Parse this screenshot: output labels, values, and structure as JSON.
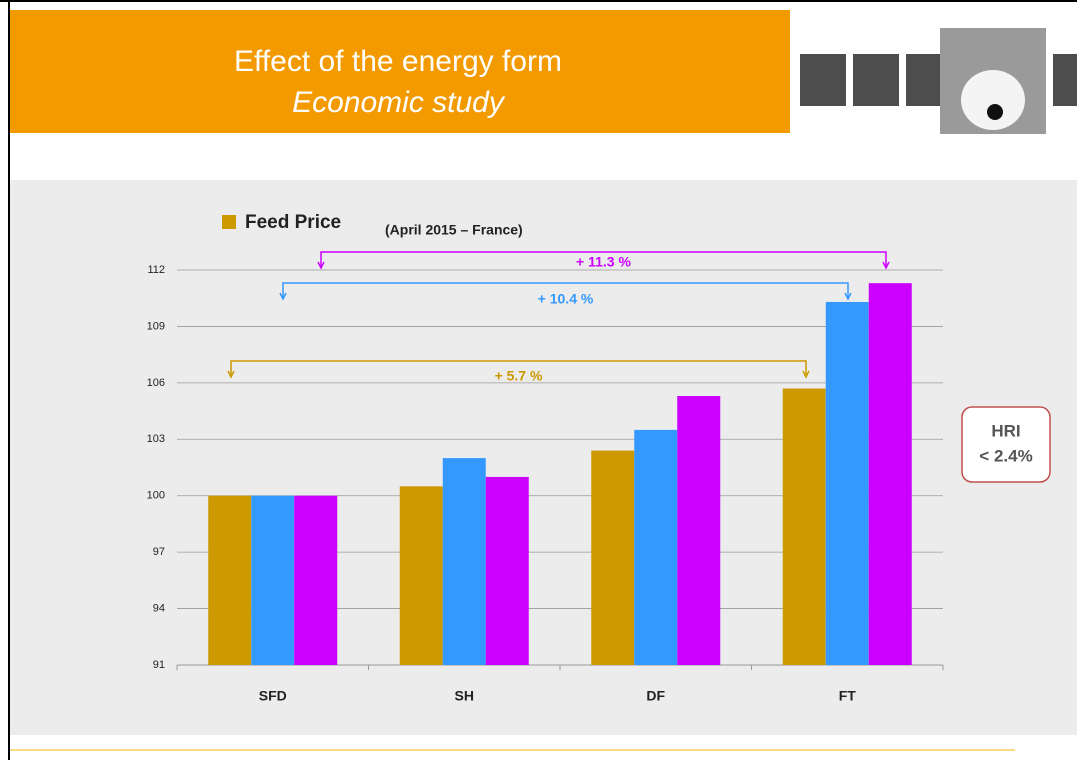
{
  "header": {
    "title": "Effect of the energy form",
    "subtitle": "Economic study"
  },
  "chart_data": {
    "type": "bar",
    "subtitle": "(April 2015 – France)",
    "categories": [
      "SFD",
      "SH",
      "DF",
      "FT"
    ],
    "series": [
      {
        "name": "Feed Price",
        "color": "#cc9900",
        "values": [
          100,
          100.5,
          102.4,
          105.7
        ]
      },
      {
        "color": "#3399ff",
        "values": [
          100,
          102.0,
          103.5,
          110.3
        ]
      },
      {
        "color": "#cc00ff",
        "values": [
          100,
          101.0,
          105.3,
          111.3
        ]
      }
    ],
    "ylim": [
      91,
      112
    ],
    "yticks": [
      91,
      94,
      97,
      100,
      103,
      106,
      109,
      112
    ],
    "grid": true,
    "annotations": [
      "+ 11.3 %",
      "+ 10.4 %",
      "+ 5.7 %"
    ],
    "note": {
      "line1": "HRI",
      "line2": "< 2.4%"
    }
  }
}
